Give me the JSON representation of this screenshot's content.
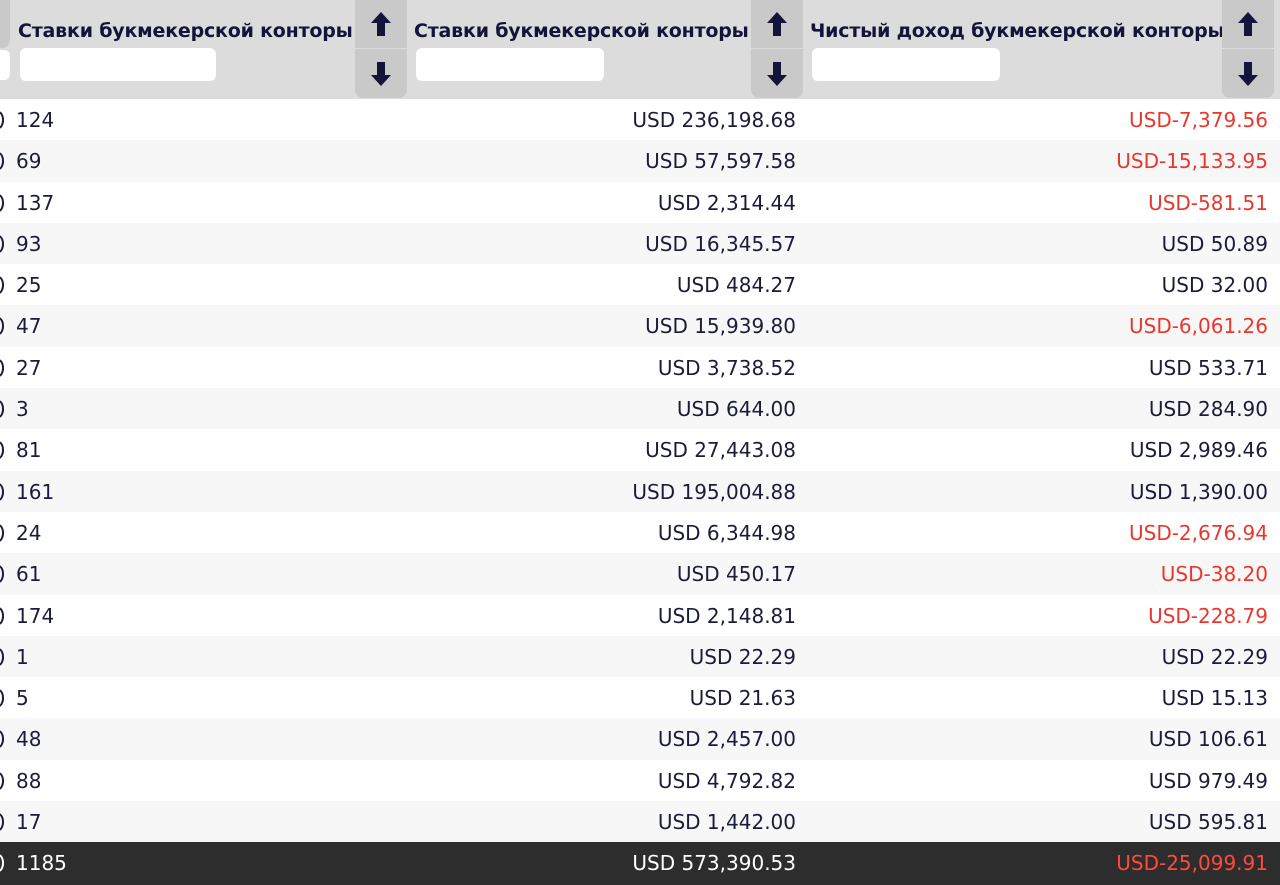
{
  "header": {
    "columns": [
      {
        "title": "Ставки букмекерской конторы",
        "filter_value": ""
      },
      {
        "title": "Ставки букмекерской конторы",
        "filter_value": ""
      },
      {
        "title": "Чистый доход букмекерской конторы",
        "filter_value": ""
      }
    ],
    "sort_up_icon": "arrow-up-icon",
    "sort_down_icon": "arrow-down-icon"
  },
  "rows": [
    {
      "count": "124",
      "stakes": "USD 236,198.68",
      "net": "USD-7,379.56",
      "net_negative": true
    },
    {
      "count": "69",
      "stakes": "USD 57,597.58",
      "net": "USD-15,133.95",
      "net_negative": true
    },
    {
      "count": "137",
      "stakes": "USD 2,314.44",
      "net": "USD-581.51",
      "net_negative": true
    },
    {
      "count": "93",
      "stakes": "USD 16,345.57",
      "net": "USD 50.89",
      "net_negative": false
    },
    {
      "count": "25",
      "stakes": "USD 484.27",
      "net": "USD 32.00",
      "net_negative": false
    },
    {
      "count": "47",
      "stakes": "USD 15,939.80",
      "net": "USD-6,061.26",
      "net_negative": true
    },
    {
      "count": "27",
      "stakes": "USD 3,738.52",
      "net": "USD 533.71",
      "net_negative": false
    },
    {
      "count": "3",
      "stakes": "USD 644.00",
      "net": "USD 284.90",
      "net_negative": false
    },
    {
      "count": "81",
      "stakes": "USD 27,443.08",
      "net": "USD 2,989.46",
      "net_negative": false
    },
    {
      "count": "161",
      "stakes": "USD 195,004.88",
      "net": "USD 1,390.00",
      "net_negative": false
    },
    {
      "count": "24",
      "stakes": "USD 6,344.98",
      "net": "USD-2,676.94",
      "net_negative": true
    },
    {
      "count": "61",
      "stakes": "USD 450.17",
      "net": "USD-38.20",
      "net_negative": true
    },
    {
      "count": "174",
      "stakes": "USD 2,148.81",
      "net": "USD-228.79",
      "net_negative": true
    },
    {
      "count": "1",
      "stakes": "USD 22.29",
      "net": "USD 22.29",
      "net_negative": false
    },
    {
      "count": "5",
      "stakes": "USD 21.63",
      "net": "USD 15.13",
      "net_negative": false
    },
    {
      "count": "48",
      "stakes": "USD 2,457.00",
      "net": "USD 106.61",
      "net_negative": false
    },
    {
      "count": "88",
      "stakes": "USD 4,792.82",
      "net": "USD 979.49",
      "net_negative": false
    },
    {
      "count": "17",
      "stakes": "USD 1,442.00",
      "net": "USD 595.81",
      "net_negative": false
    }
  ],
  "total": {
    "count": "1185",
    "stakes": "USD 573,390.53",
    "net": "USD-25,099.91",
    "net_negative": true
  },
  "colors": {
    "negative": "#e8382e",
    "header_bg": "#dcdcdc",
    "total_bg": "#2d2d2d",
    "text": "#1a1c3a"
  }
}
